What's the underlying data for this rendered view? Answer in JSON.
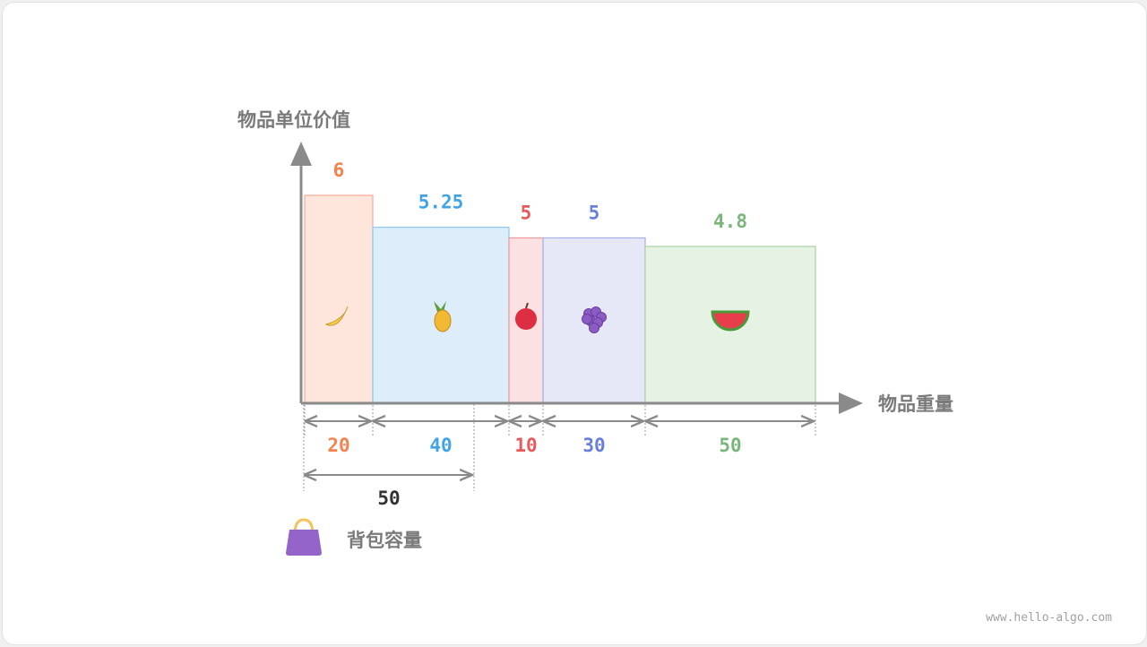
{
  "axis": {
    "y_label": "物品单位价值",
    "x_label": "物品重量"
  },
  "items": [
    {
      "icon": "banana-icon",
      "weight": 20,
      "unit_value": "6",
      "fill": "#fee6dd",
      "stroke": "#f4a99a",
      "color": "#f5814f"
    },
    {
      "icon": "pineapple-icon",
      "weight": 40,
      "unit_value": "5.25",
      "fill": "#ddeefa",
      "stroke": "#8ec9f0",
      "color": "#40a3e8"
    },
    {
      "icon": "apple-icon",
      "weight": 10,
      "unit_value": "5",
      "fill": "#fbe1e1",
      "stroke": "#ef9a9a",
      "color": "#e8595b"
    },
    {
      "icon": "grapes-icon",
      "weight": 30,
      "unit_value": "5",
      "fill": "#e6e8f8",
      "stroke": "#a4aee8",
      "color": "#6a7fd9"
    },
    {
      "icon": "watermelon-icon",
      "weight": 50,
      "unit_value": "4.8",
      "fill": "#e6f2e4",
      "stroke": "#a8d0a3",
      "color": "#7ab57a"
    }
  ],
  "capacity": {
    "value": "50",
    "label": "背包容量",
    "icon": "handbag-icon"
  },
  "watermark": "www.hello-algo.com"
}
